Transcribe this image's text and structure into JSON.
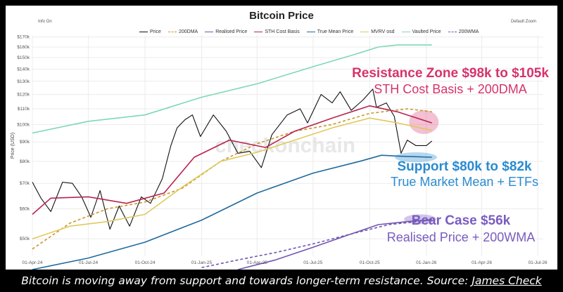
{
  "chart_data": {
    "type": "line",
    "title": "Bitcoin Price",
    "controls": {
      "left": "Info On",
      "right": "Default Zoom"
    },
    "ylabel": "Price (USD)",
    "yscale": "log",
    "ylim": [
      45000,
      172000
    ],
    "xlim": [
      "2024-04-01",
      "2026-07-10"
    ],
    "yticks": [
      50000,
      60000,
      70000,
      80000,
      90000,
      100000,
      110000,
      120000,
      130000,
      140000,
      150000,
      160000,
      170000
    ],
    "yticklabels": [
      "$50k",
      "$60k",
      "$70k",
      "$80k",
      "$90k",
      "$100k",
      "$110k",
      "$120k",
      "$130k",
      "$140k",
      "$150k",
      "$160k",
      "$170k"
    ],
    "xticks": [
      "2024-04-01",
      "2024-07-01",
      "2024-10-01",
      "2025-01-01",
      "2025-04-01",
      "2025-07-01",
      "2025-10-01",
      "2026-01-01",
      "2026-04-01",
      "2026-07-01"
    ],
    "xticklabels": [
      "01-Apr-24",
      "01-Jul-24",
      "01-Oct-24",
      "01-Jan-25",
      "01-Apr-25",
      "01-Jul-25",
      "01-Oct-25",
      "01-Jan-26",
      "01-Apr-26",
      "01-Jul-26"
    ],
    "grid": true,
    "legend_position": "top",
    "watermark": "checkonchain",
    "series": [
      {
        "name": "Price",
        "color": "#111111",
        "style": "solid",
        "x": [
          "2024-04-01",
          "2024-04-15",
          "2024-05-01",
          "2024-05-20",
          "2024-06-05",
          "2024-06-20",
          "2024-07-05",
          "2024-07-20",
          "2024-08-05",
          "2024-08-20",
          "2024-09-06",
          "2024-09-25",
          "2024-10-10",
          "2024-10-29",
          "2024-11-12",
          "2024-11-22",
          "2024-12-05",
          "2024-12-17",
          "2024-12-30",
          "2025-01-20",
          "2025-02-10",
          "2025-03-01",
          "2025-03-20",
          "2025-04-08",
          "2025-04-25",
          "2025-05-20",
          "2025-06-10",
          "2025-06-22",
          "2025-07-14",
          "2025-08-01",
          "2025-08-14",
          "2025-09-01",
          "2025-09-20",
          "2025-10-06",
          "2025-10-12",
          "2025-10-28",
          "2025-11-10",
          "2025-11-21",
          "2025-12-01",
          "2025-12-15",
          "2026-01-01",
          "2026-01-10"
        ],
        "y": [
          70500,
          64000,
          59000,
          70500,
          70000,
          64500,
          57000,
          67000,
          53000,
          61000,
          54000,
          64500,
          62000,
          72000,
          88000,
          98000,
          103000,
          106000,
          93000,
          106000,
          96000,
          84000,
          85000,
          77000,
          94000,
          106000,
          110000,
          101000,
          120000,
          114000,
          122000,
          109000,
          116000,
          124000,
          111000,
          114000,
          105000,
          84000,
          91000,
          88000,
          88000,
          90500
        ]
      },
      {
        "name": "200DMA",
        "color": "#c9962a",
        "style": "dash",
        "x": [
          "2024-04-01",
          "2024-06-01",
          "2024-08-01",
          "2024-10-01",
          "2024-12-01",
          "2025-02-01",
          "2025-04-01",
          "2025-06-01",
          "2025-08-01",
          "2025-10-01",
          "2025-12-01",
          "2026-01-10"
        ],
        "y": [
          47000,
          55000,
          60000,
          62500,
          68000,
          80000,
          89000,
          96000,
          100000,
          107000,
          110000,
          108000
        ]
      },
      {
        "name": "Realised Price",
        "color": "#7256b0",
        "style": "solid",
        "x": [
          "2025-03-01",
          "2025-05-01",
          "2025-07-01",
          "2025-09-01",
          "2025-10-15",
          "2025-12-01",
          "2026-01-10"
        ],
        "y": [
          41500,
          44000,
          47500,
          51500,
          54500,
          55500,
          56200
        ]
      },
      {
        "name": "STH Cost Basis",
        "color": "#b8234f",
        "style": "solid",
        "x": [
          "2024-04-01",
          "2024-05-01",
          "2024-07-01",
          "2024-09-01",
          "2024-11-01",
          "2024-12-20",
          "2025-02-15",
          "2025-04-15",
          "2025-06-01",
          "2025-08-01",
          "2025-10-01",
          "2025-11-15",
          "2026-01-10"
        ],
        "y": [
          58000,
          64000,
          64500,
          62000,
          66000,
          82000,
          91000,
          87000,
          96000,
          104000,
          112000,
          108000,
          101000
        ]
      },
      {
        "name": "True Mean Price",
        "color": "#1f6a9e",
        "style": "solid",
        "x": [
          "2024-04-01",
          "2024-07-01",
          "2024-10-01",
          "2025-01-01",
          "2025-04-01",
          "2025-07-01",
          "2025-09-15",
          "2025-10-20",
          "2025-11-20",
          "2026-01-10"
        ],
        "y": [
          41500,
          44500,
          49000,
          56000,
          66000,
          74500,
          80000,
          83000,
          82500,
          82000
        ]
      },
      {
        "name": "MVRV osd",
        "color": "#e0c95c",
        "style": "solid",
        "x": [
          "2024-04-01",
          "2024-06-01",
          "2024-08-01",
          "2024-10-01",
          "2024-12-01",
          "2025-02-01",
          "2025-04-01",
          "2025-06-01",
          "2025-08-01",
          "2025-10-01",
          "2025-11-15",
          "2026-01-10"
        ],
        "y": [
          50000,
          54000,
          55500,
          58000,
          68500,
          80000,
          84500,
          91000,
          98000,
          104000,
          101000,
          96500
        ]
      },
      {
        "name": "Vaulted Price",
        "color": "#7fd8b3",
        "style": "solid",
        "x": [
          "2024-04-01",
          "2024-07-01",
          "2024-10-01",
          "2025-01-01",
          "2025-04-01",
          "2025-07-01",
          "2025-09-01",
          "2025-10-15",
          "2025-11-15",
          "2026-01-10"
        ],
        "y": [
          95000,
          102000,
          106000,
          118000,
          128000,
          142000,
          152000,
          160000,
          162000,
          162000
        ]
      },
      {
        "name": "200WMA",
        "color": "#7256b0",
        "style": "dash",
        "x": [
          "2025-01-01",
          "2025-03-01",
          "2025-05-01",
          "2025-07-01",
          "2025-09-01",
          "2025-11-01",
          "2026-01-10"
        ],
        "y": [
          42000,
          44000,
          46000,
          48500,
          51500,
          54500,
          56000
        ]
      }
    ],
    "annotations": [
      {
        "title": "Resistance Zone $98k to $105k",
        "subtitle": "STH Cost Basis + 200DMA",
        "color": "#d6336c",
        "x": "2025-12-10",
        "y": 102000
      },
      {
        "title": "Support $80k to $82k",
        "subtitle": "True Market Mean + ETFs",
        "color": "#2a8bd0",
        "x": "2025-12-15",
        "y": 82000
      },
      {
        "title": "Bear Case $56k",
        "subtitle": "Realised Price + 200WMA",
        "color": "#7a5cc0",
        "x": "2025-12-15",
        "y": 56500
      }
    ]
  },
  "caption": {
    "text": "Bitcoin is moving away from support and towards longer-term resistance. Source: ",
    "source": "James Check"
  }
}
